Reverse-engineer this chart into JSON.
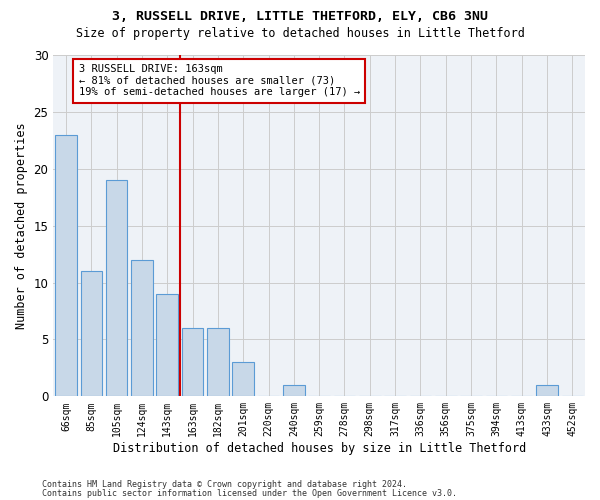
{
  "title1": "3, RUSSELL DRIVE, LITTLE THETFORD, ELY, CB6 3NU",
  "title2": "Size of property relative to detached houses in Little Thetford",
  "xlabel": "Distribution of detached houses by size in Little Thetford",
  "ylabel": "Number of detached properties",
  "categories": [
    "66sqm",
    "85sqm",
    "105sqm",
    "124sqm",
    "143sqm",
    "163sqm",
    "182sqm",
    "201sqm",
    "220sqm",
    "240sqm",
    "259sqm",
    "278sqm",
    "298sqm",
    "317sqm",
    "336sqm",
    "356sqm",
    "375sqm",
    "394sqm",
    "413sqm",
    "433sqm",
    "452sqm"
  ],
  "values": [
    23,
    11,
    19,
    12,
    9,
    6,
    6,
    3,
    0,
    1,
    0,
    0,
    0,
    0,
    0,
    0,
    0,
    0,
    0,
    1,
    0
  ],
  "bar_color": "#c8d8e8",
  "bar_edge_color": "#5b9bd5",
  "highlight_index": 5,
  "highlight_line_color": "#cc0000",
  "annotation_line1": "3 RUSSELL DRIVE: 163sqm",
  "annotation_line2": "← 81% of detached houses are smaller (73)",
  "annotation_line3": "19% of semi-detached houses are larger (17) →",
  "annotation_box_color": "#ffffff",
  "annotation_box_edge": "#cc0000",
  "ylim": [
    0,
    30
  ],
  "yticks": [
    0,
    5,
    10,
    15,
    20,
    25,
    30
  ],
  "grid_color": "#cccccc",
  "bg_color": "#eef2f7",
  "footer1": "Contains HM Land Registry data © Crown copyright and database right 2024.",
  "footer2": "Contains public sector information licensed under the Open Government Licence v3.0."
}
